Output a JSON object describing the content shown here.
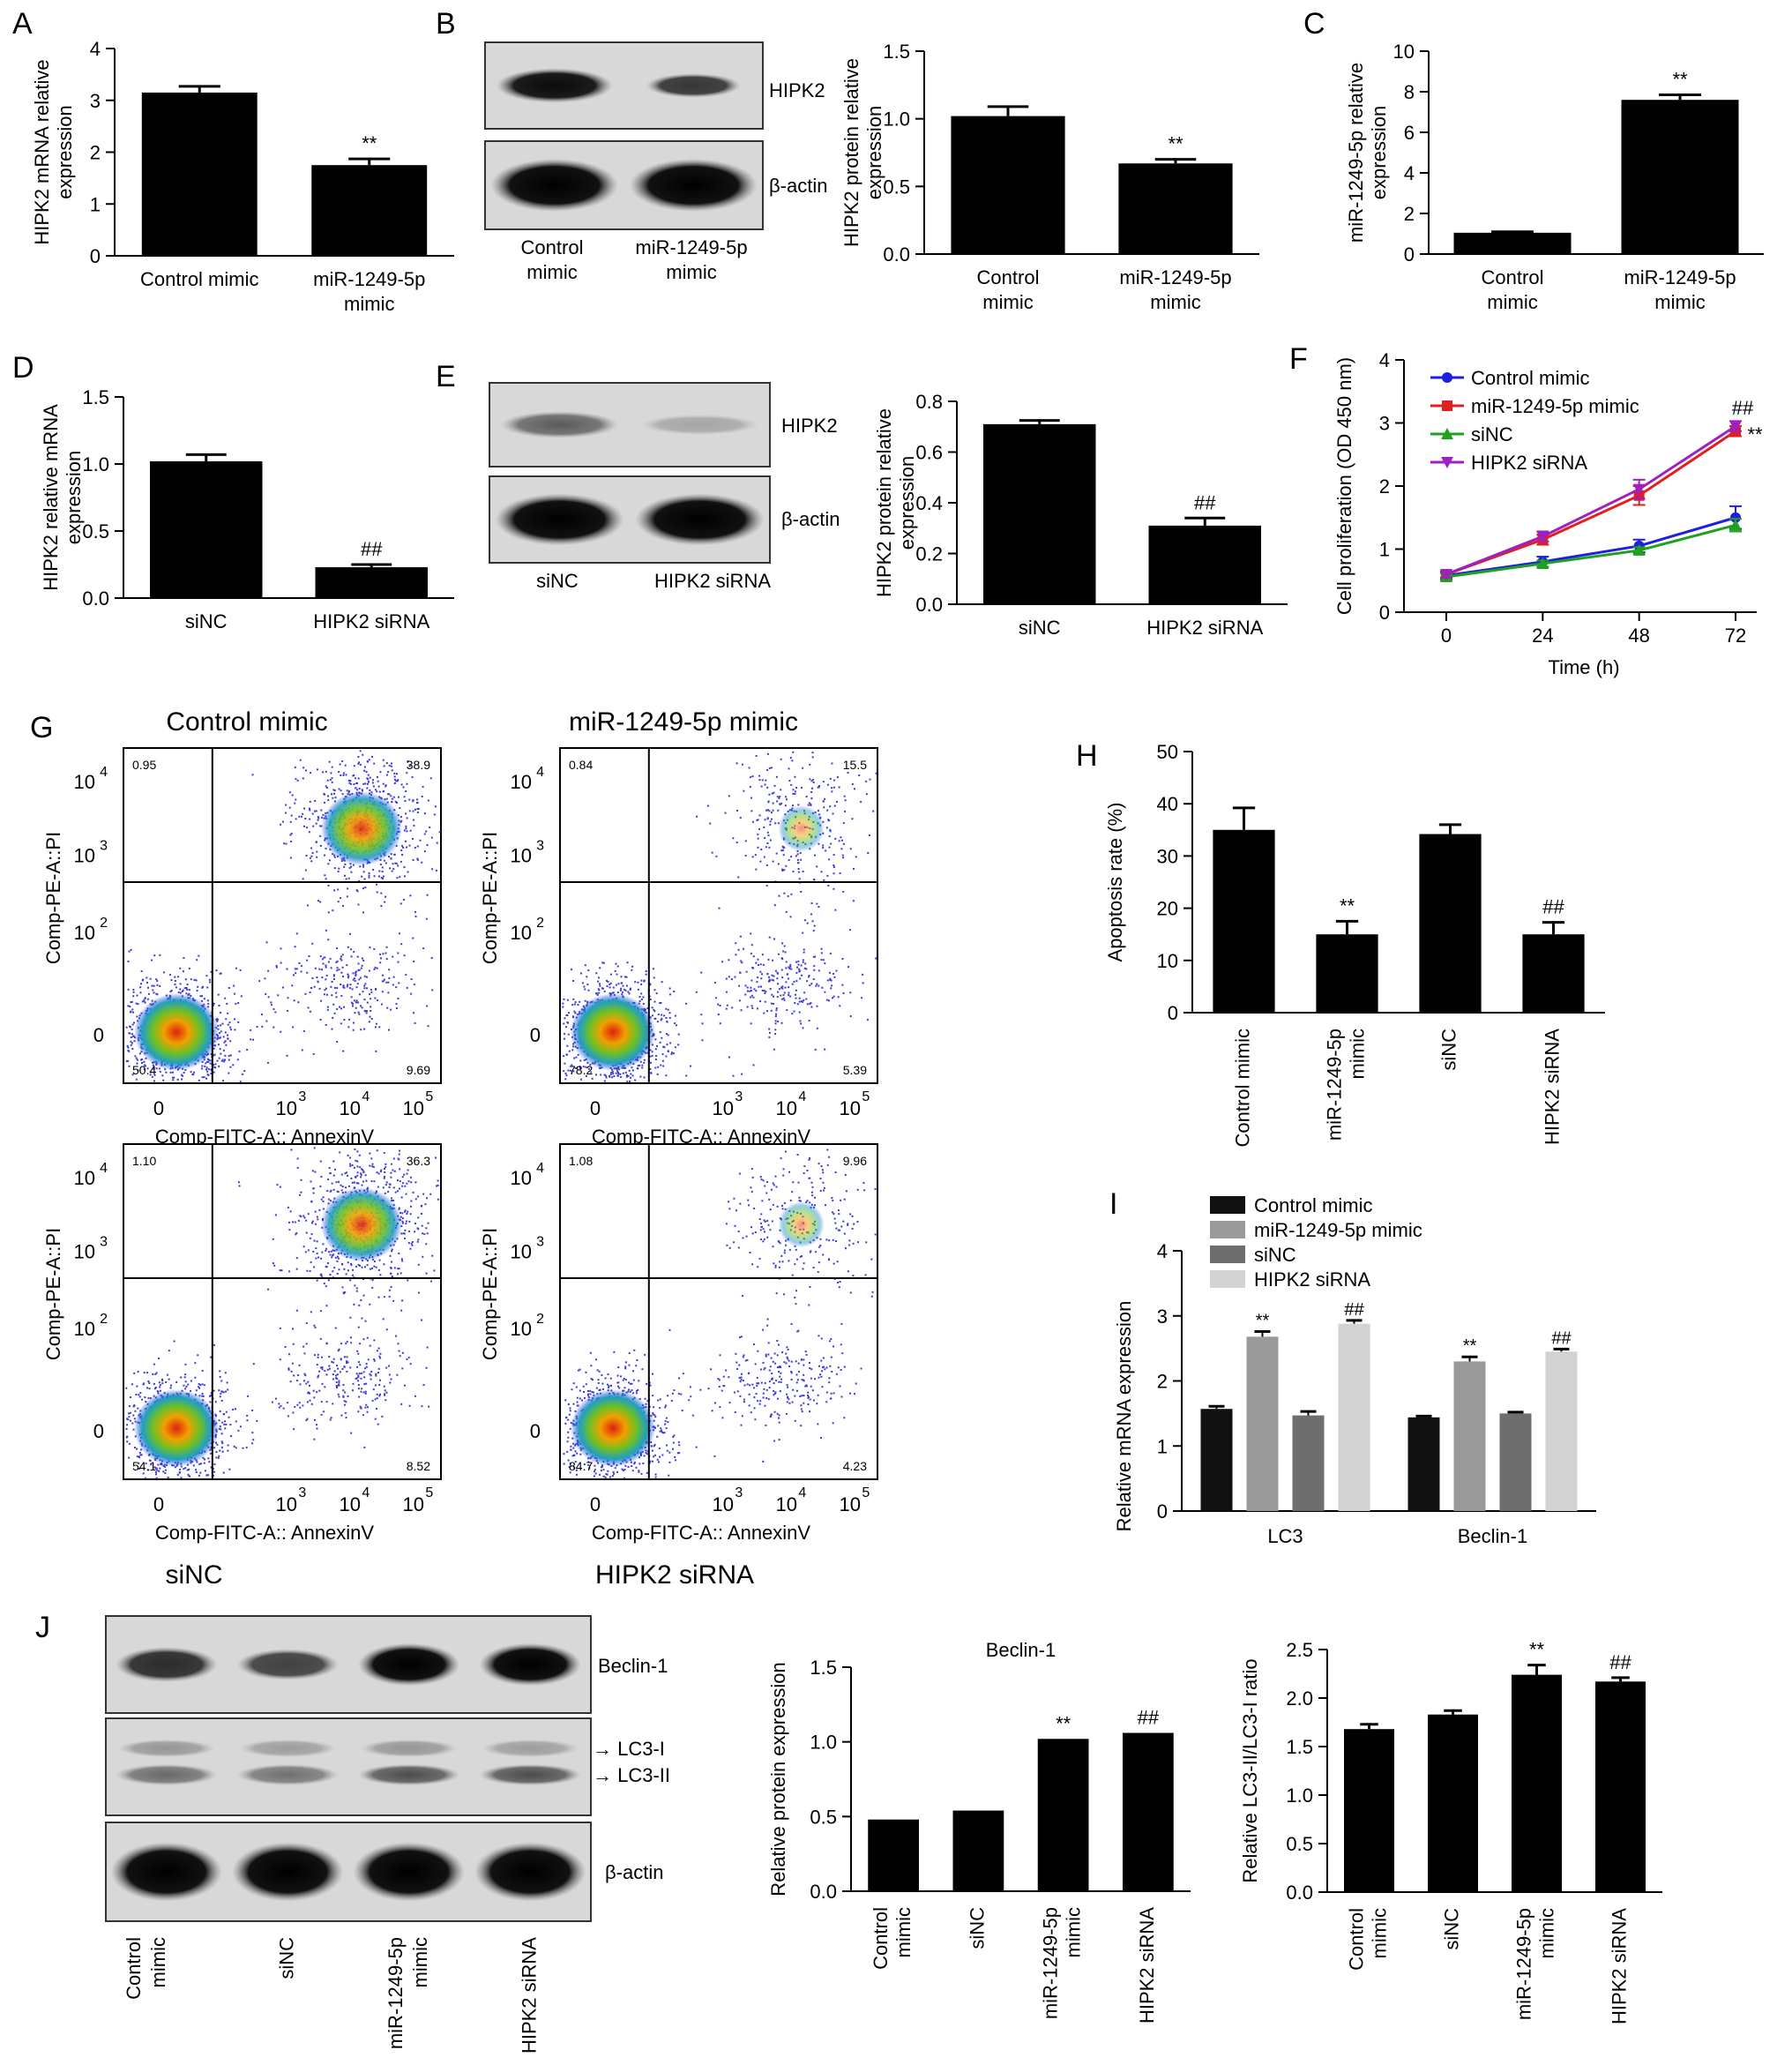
{
  "panels": {
    "A": {
      "letter": "A",
      "chart_data": {
        "type": "bar",
        "categories": [
          "Control mimic",
          "miR-1249-5p\nmimic"
        ],
        "values": [
          3.15,
          1.75
        ],
        "errors": [
          0.12,
          0.12
        ],
        "ylabel": "HIPK2 mRNA relative\nexpression",
        "ylim": [
          0,
          4
        ],
        "yticks": [
          "0",
          "1",
          "2",
          "3",
          "4"
        ],
        "sig": [
          "",
          "**"
        ]
      }
    },
    "B": {
      "letter": "B",
      "blot": {
        "bands": [
          "HIPK2",
          "β-actin"
        ],
        "lanes": [
          "Control\nmimic",
          "miR-1249-5p\nmimic"
        ]
      },
      "chart_data": {
        "type": "bar",
        "categories": [
          "Control\nmimic",
          "miR-1249-5p\nmimic"
        ],
        "values": [
          1.02,
          0.67
        ],
        "errors": [
          0.07,
          0.03
        ],
        "ylabel": "HIPK2 protein relative\nexpression",
        "ylim": [
          0,
          1.5
        ],
        "yticks": [
          "0.0",
          "0.5",
          "1.0",
          "1.5"
        ],
        "sig": [
          "",
          "**"
        ]
      }
    },
    "C": {
      "letter": "C",
      "chart_data": {
        "type": "bar",
        "categories": [
          "Control\nmimic",
          "miR-1249-5p\nmimic"
        ],
        "values": [
          1.05,
          7.6
        ],
        "errors": [
          0.05,
          0.25
        ],
        "ylabel": "miR-1249-5p relative\nexpression",
        "ylim": [
          0,
          10
        ],
        "yticks": [
          "0",
          "2",
          "4",
          "6",
          "8",
          "10"
        ],
        "sig": [
          "",
          "**"
        ]
      }
    },
    "D": {
      "letter": "D",
      "chart_data": {
        "type": "bar",
        "categories": [
          "siNC",
          "HIPK2 siRNA"
        ],
        "values": [
          1.02,
          0.23
        ],
        "errors": [
          0.05,
          0.02
        ],
        "ylabel": "HIPK2 relative mRNA\nexpression",
        "ylim": [
          0,
          1.5
        ],
        "yticks": [
          "0.0",
          "0.5",
          "1.0",
          "1.5"
        ],
        "sig": [
          "",
          "##"
        ]
      }
    },
    "E": {
      "letter": "E",
      "blot": {
        "bands": [
          "HIPK2",
          "β-actin"
        ],
        "lanes": [
          "siNC",
          "HIPK2 siRNA"
        ]
      },
      "chart_data": {
        "type": "bar",
        "categories": [
          "siNC",
          "HIPK2 siRNA"
        ],
        "values": [
          0.71,
          0.31
        ],
        "errors": [
          0.015,
          0.03
        ],
        "ylabel": "HIPK2 protein relative\nexpression",
        "ylim": [
          0,
          0.8
        ],
        "yticks": [
          "0.0",
          "0.2",
          "0.4",
          "0.6",
          "0.8"
        ],
        "sig": [
          "",
          "##"
        ]
      }
    },
    "F": {
      "letter": "F",
      "chart_data": {
        "type": "line",
        "x": [
          0,
          24,
          48,
          72
        ],
        "xticks": [
          "0",
          "24",
          "48",
          "72"
        ],
        "xlabel": "Time (h)",
        "ylabel": "Cell proliferation (OD 450 nm)",
        "ylim": [
          0,
          4
        ],
        "yticks": [
          "0",
          "1",
          "2",
          "3",
          "4"
        ],
        "series": [
          {
            "name": "Control mimic",
            "color": "#1f1fe0",
            "values": [
              0.58,
              0.8,
              1.05,
              1.5
            ],
            "errors": [
              0.05,
              0.08,
              0.1,
              0.18
            ]
          },
          {
            "name": "miR-1249-5p mimic",
            "color": "#e01f1f",
            "values": [
              0.6,
              1.15,
              1.85,
              2.87
            ],
            "errors": [
              0.05,
              0.08,
              0.15,
              0.08
            ]
          },
          {
            "name": "siNC",
            "color": "#1fa01f",
            "values": [
              0.56,
              0.77,
              0.98,
              1.38
            ],
            "errors": [
              0.05,
              0.05,
              0.05,
              0.1
            ]
          },
          {
            "name": "HIPK2 siRNA",
            "color": "#a01fc0",
            "values": [
              0.6,
              1.2,
              1.95,
              2.95
            ],
            "errors": [
              0.05,
              0.08,
              0.15,
              0.08
            ]
          }
        ],
        "sig": [
          "##",
          "**"
        ]
      }
    },
    "G": {
      "letter": "G",
      "plots": [
        {
          "title": "Control mimic",
          "caption": "",
          "q": [
            "0.95",
            "38.9",
            "50.4",
            "9.69"
          ],
          "color": "#3a3ad8"
        },
        {
          "title": "miR-1249-5p mimic",
          "caption": "",
          "q": [
            "0.84",
            "15.5",
            "78.2",
            "5.39"
          ],
          "color": "#3a3ad8"
        },
        {
          "title": "",
          "caption": "siNC",
          "q": [
            "1.10",
            "36.3",
            "54.1",
            "8.52"
          ],
          "color": "#3a3ad8"
        },
        {
          "title": "",
          "caption": "HIPK2 siRNA",
          "q": [
            "1.08",
            "9.96",
            "84.7",
            "4.23"
          ],
          "color": "#3a3ad8"
        }
      ],
      "xlabel": "Comp-FITC-A:: AnnexinV",
      "ylabel": "Comp-PE-A::PI",
      "xticks": [
        "0",
        "10",
        "10",
        "10",
        "10"
      ],
      "xexp": [
        "",
        "3",
        "4",
        "5"
      ],
      "yticks": [
        "0",
        "10",
        "10",
        "10"
      ],
      "yexp": [
        "2",
        "3",
        "4"
      ]
    },
    "H": {
      "letter": "H",
      "chart_data": {
        "type": "bar",
        "categories": [
          "Control mimic",
          "miR-1249-5p\nmimic",
          "siNC",
          "HIPK2 siRNA"
        ],
        "values": [
          35,
          15,
          34.2,
          15
        ],
        "errors": [
          4.2,
          2.5,
          1.8,
          2.3
        ],
        "ylabel": "Apoptosis rate (%)",
        "ylim": [
          0,
          50
        ],
        "yticks": [
          "0",
          "10",
          "20",
          "30",
          "40",
          "50"
        ],
        "sig": [
          "",
          "**",
          "",
          "##"
        ]
      }
    },
    "I": {
      "letter": "I",
      "chart_data": {
        "type": "bar",
        "categories": [
          "LC3",
          "Beclin-1"
        ],
        "ylabel": "Relative mRNA expression",
        "ylim": [
          0,
          4
        ],
        "yticks": [
          "0",
          "1",
          "2",
          "3",
          "4"
        ],
        "series": [
          {
            "name": "Control mimic",
            "color": "#111111",
            "values": [
              1.57,
              1.44
            ],
            "errors": [
              0.04,
              0.02
            ]
          },
          {
            "name": "miR-1249-5p mimic",
            "color": "#9a9a9a",
            "values": [
              2.68,
              2.3
            ],
            "errors": [
              0.08,
              0.07
            ]
          },
          {
            "name": "siNC",
            "color": "#6e6e6e",
            "values": [
              1.47,
              1.5
            ],
            "errors": [
              0.06,
              0.02
            ]
          },
          {
            "name": "HIPK2 siRNA",
            "color": "#d2d2d2",
            "values": [
              2.88,
              2.45
            ],
            "errors": [
              0.05,
              0.04
            ]
          }
        ],
        "sig": [
          [
            "",
            "**",
            "",
            "##"
          ],
          [
            "",
            "**",
            "",
            "##"
          ]
        ]
      }
    },
    "J": {
      "letter": "J",
      "blot": {
        "bands": [
          "Beclin-1",
          "→ LC3-I",
          "→ LC3-II",
          "β-actin"
        ],
        "lanes": [
          "Control\nmimic",
          "siNC",
          "miR-1249-5p\nmimic",
          "HIPK2 siRNA"
        ]
      },
      "chart1": {
        "type": "bar",
        "title": "Beclin-1",
        "categories": [
          "Control\nmimic",
          "siNC",
          "miR-1249-5p\nmimic",
          "HIPK2 siRNA"
        ],
        "values": [
          0.48,
          0.54,
          1.02,
          1.06
        ],
        "errors": [
          0,
          0,
          0,
          0
        ],
        "ylabel": "Relative protein expression",
        "ylim": [
          0,
          1.5
        ],
        "yticks": [
          "0.0",
          "0.5",
          "1.0",
          "1.5"
        ],
        "sig": [
          "",
          "",
          "**",
          "##"
        ]
      },
      "chart2": {
        "type": "bar",
        "title": "",
        "categories": [
          "Control\nmimic",
          "siNC",
          "miR-1249-5p\nmimic",
          "HIPK2 siRNA"
        ],
        "values": [
          1.68,
          1.83,
          2.24,
          2.17
        ],
        "errors": [
          0.05,
          0.04,
          0.1,
          0.04
        ],
        "ylabel": "Relative LC3-II/LC3-I ratio",
        "ylim": [
          0,
          2.5
        ],
        "yticks": [
          "0.0",
          "0.5",
          "1.0",
          "1.5",
          "2.0",
          "2.5"
        ],
        "sig": [
          "",
          "",
          "**",
          "##"
        ]
      }
    }
  }
}
